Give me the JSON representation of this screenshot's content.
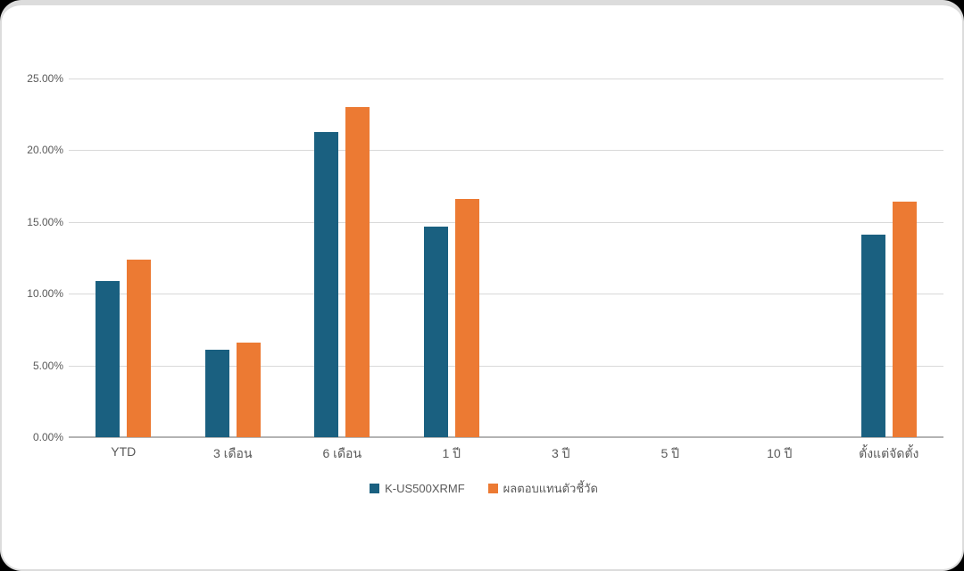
{
  "colors": {
    "fund": "#1a6080",
    "benchmark": "#ec7a33",
    "gridline": "#d9d9d9",
    "axis_line": "#b3b3b3",
    "text": "#595959",
    "card_background": "#ffffff",
    "card_border": "#dcdcdc",
    "outer_background": "#000000"
  },
  "chart_data": {
    "type": "bar",
    "categories": [
      "YTD",
      "3 เดือน",
      "6 เดือน",
      "1 ปี",
      "3 ปี",
      "5 ปี",
      "10 ปี",
      "ตั้งแต่จัดตั้ง"
    ],
    "series": [
      {
        "name": "K-US500XRMF",
        "color_key": "fund",
        "values": [
          10.9,
          6.1,
          21.3,
          14.7,
          null,
          null,
          null,
          14.1
        ]
      },
      {
        "name": "ผลตอบแทนตัวชี้วัด",
        "color_key": "benchmark",
        "values": [
          12.4,
          6.6,
          23.0,
          16.6,
          null,
          null,
          null,
          16.4
        ]
      }
    ],
    "title": "",
    "xlabel": "",
    "ylabel": "",
    "ylim": [
      0,
      25
    ],
    "ytick_step": 5,
    "ytick_labels": [
      "0.00%",
      "5.00%",
      "10.00%",
      "15.00%",
      "20.00%",
      "25.00%"
    ],
    "grid": true,
    "legend_position": "bottom-center"
  }
}
